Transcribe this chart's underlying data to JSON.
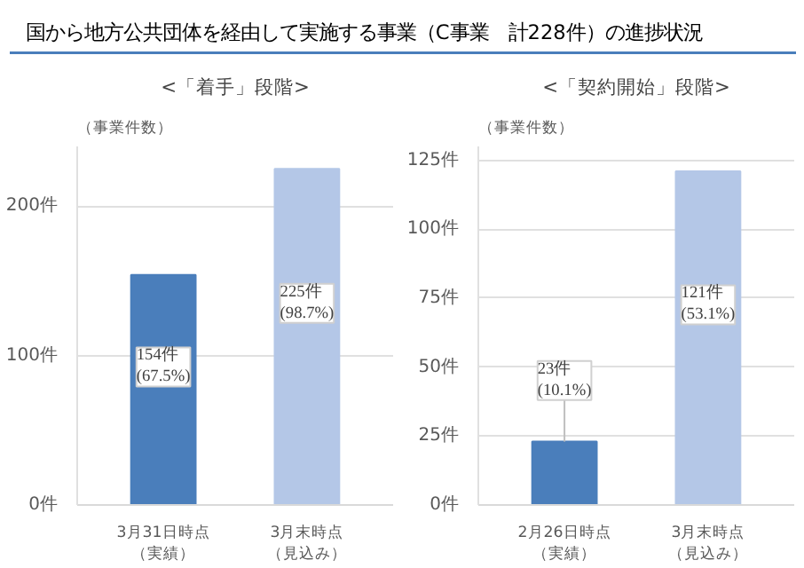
{
  "chart_data": [
    {
      "type": "bar",
      "title": "国から地方公共団体を経由して実施する事業（C事業　計228件）の進捗状況",
      "subtitle": "<「着手」段階>",
      "ylabel": "（事業件数）",
      "categories": [
        "3月31日時点（実績）",
        "3月末時点（見込み）"
      ],
      "values": [
        154,
        225
      ],
      "colors": [
        "#4a7ebb",
        "#b4c7e7"
      ],
      "value_labels": [
        "154件\n(67.5%)",
        "225件\n(98.7%)"
      ],
      "ylim": [
        0,
        240
      ],
      "yticks": [
        {
          "value": 0,
          "label": "0件"
        },
        {
          "value": 100,
          "label": "100件"
        },
        {
          "value": 200,
          "label": "200件"
        }
      ],
      "grid": "y"
    },
    {
      "type": "bar",
      "title": "<「契約開始」段階>",
      "ylabel": "（事業件数）",
      "categories": [
        "2月26日時点（実績）",
        "3月末時点（見込み）"
      ],
      "values": [
        23,
        121
      ],
      "colors": [
        "#4a7ebb",
        "#b4c7e7"
      ],
      "value_labels": [
        "23件\n(10.1%)",
        "121件\n(53.1%)"
      ],
      "ylim": [
        0,
        130
      ],
      "yticks": [
        {
          "value": 0,
          "label": "0件"
        },
        {
          "value": 25,
          "label": "25件"
        },
        {
          "value": 50,
          "label": "50件"
        },
        {
          "value": 75,
          "label": "75件"
        },
        {
          "value": 100,
          "label": "100件"
        },
        {
          "value": 125,
          "label": "125件"
        }
      ],
      "grid": "y"
    }
  ]
}
